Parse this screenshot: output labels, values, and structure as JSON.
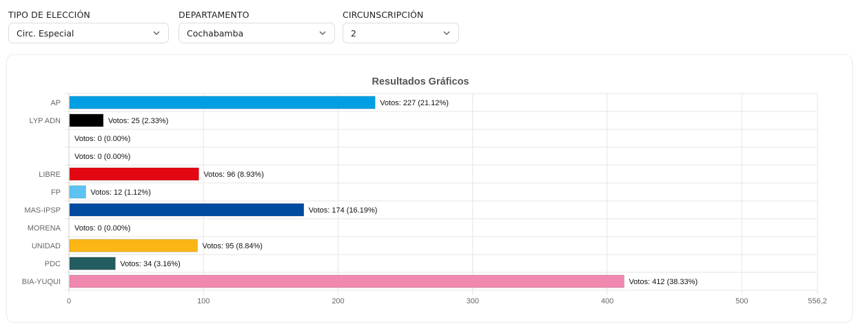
{
  "filters": [
    {
      "label": "TIPO DE ELECCIÓN",
      "value": "Circ. Especial"
    },
    {
      "label": "DEPARTAMENTO",
      "value": "Cochabamba"
    },
    {
      "label": "CIRCUNSCRIPCIÓN",
      "value": "2"
    }
  ],
  "icons": {
    "dropdown": "chevron-down-icon"
  },
  "chart_data": {
    "type": "bar",
    "orientation": "horizontal",
    "title": "Resultados Gráficos",
    "categories": [
      "AP",
      "LYP ADN",
      "",
      "",
      "LIBRE",
      "FP",
      "MAS-IPSP",
      "MORENA",
      "UNIDAD",
      "PDC",
      "BIA-YUQUI"
    ],
    "values": [
      227,
      25,
      0,
      0,
      96,
      12,
      174,
      0,
      95,
      34,
      412
    ],
    "data_labels": [
      "Votos: 227 (21.12%)",
      "Votos: 25 (2.33%)",
      "Votos: 0 (0.00%)",
      "Votos: 0 (0.00%)",
      "Votos: 96 (8.93%)",
      "Votos: 12 (1.12%)",
      "Votos: 174 (16.19%)",
      "Votos: 0 (0.00%)",
      "Votos: 95 (8.84%)",
      "Votos: 34 (3.16%)",
      "Votos: 412 (38.33%)"
    ],
    "colors": [
      "#009fe3",
      "#000000",
      "#cccccc",
      "#cccccc",
      "#e30613",
      "#5bc4f1",
      "#004a9f",
      "#8b1a1a",
      "#fbb616",
      "#245d61",
      "#f088b0"
    ],
    "xlim": [
      0,
      556.2
    ],
    "xticks": [
      "0",
      "100",
      "200",
      "300",
      "400",
      "500",
      "556,2"
    ],
    "grid": true,
    "legend": "none"
  }
}
